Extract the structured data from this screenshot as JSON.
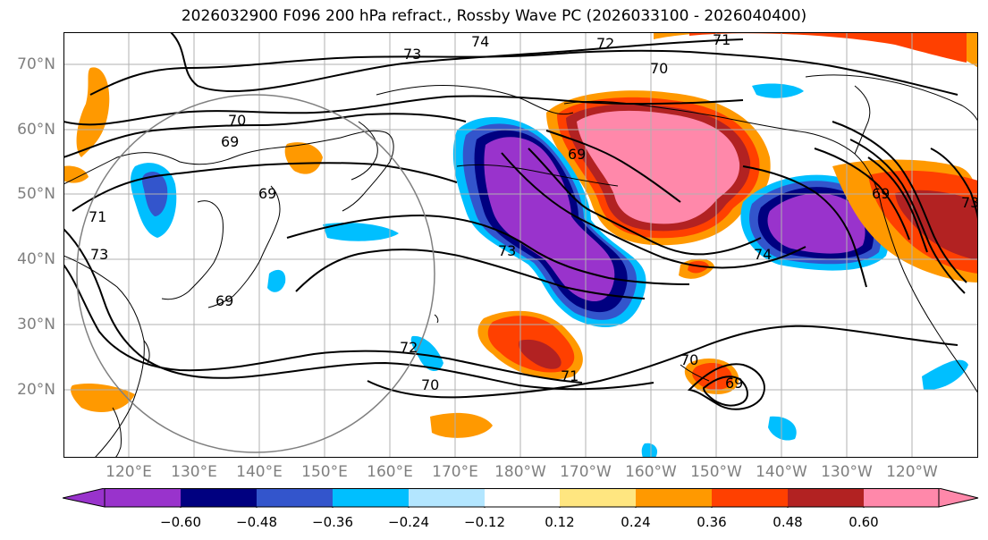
{
  "title": "2026032900 F096 200 hPa refract., Rossby Wave PC (2026033100 - 2026040400)",
  "lat_labels": [
    "70°N",
    "60°N",
    "50°N",
    "40°N",
    "30°N",
    "20°N"
  ],
  "lon_labels": [
    "120°E",
    "130°E",
    "140°E",
    "150°E",
    "160°E",
    "170°E",
    "180°W",
    "170°W",
    "160°W",
    "150°W",
    "140°W",
    "130°W",
    "120°W"
  ],
  "contour_labels": [
    "74",
    "72",
    "73",
    "71",
    "70",
    "70",
    "69",
    "69",
    "69",
    "71",
    "73",
    "73",
    "69",
    "73",
    "74",
    "69",
    "72",
    "70",
    "71",
    "70",
    "69"
  ],
  "colorbar": {
    "ticks": [
      "−0.60",
      "−0.48",
      "−0.36",
      "−0.24",
      "−0.12",
      "0.12",
      "0.24",
      "0.36",
      "0.48",
      "0.60"
    ],
    "colors": [
      "#9933cc",
      "#000080",
      "#3355cc",
      "#00bfff",
      "#b3e6ff",
      "#ffffff",
      "#ffe680",
      "#ff9900",
      "#ff4000",
      "#b22222",
      "#ff88aa"
    ]
  }
}
